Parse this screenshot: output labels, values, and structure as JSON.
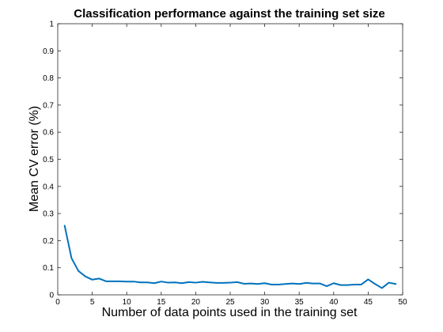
{
  "chart_data": {
    "type": "line",
    "title": "Classification performance against the training set size",
    "xlabel": "Number of data points used in the training set",
    "ylabel": "Mean CV error (%)",
    "xlim": [
      0,
      50
    ],
    "ylim": [
      0,
      1
    ],
    "xticks": [
      "0",
      "5",
      "10",
      "15",
      "20",
      "25",
      "30",
      "35",
      "40",
      "45",
      "50"
    ],
    "yticks": [
      "0",
      "0.1",
      "0.2",
      "0.3",
      "0.4",
      "0.5",
      "0.6",
      "0.7",
      "0.8",
      "0.9",
      "1"
    ],
    "grid": false,
    "legend": "none",
    "series": [
      {
        "color": "#0072BD",
        "x": [
          1,
          2,
          3,
          4,
          5,
          6,
          7,
          8,
          9,
          10,
          11,
          12,
          13,
          14,
          15,
          16,
          17,
          18,
          19,
          20,
          21,
          22,
          23,
          24,
          25,
          26,
          27,
          28,
          29,
          30,
          31,
          32,
          33,
          34,
          35,
          36,
          37,
          38,
          39,
          40,
          41,
          42,
          43,
          44,
          45,
          46,
          47,
          48,
          49
        ],
        "y": [
          0.255,
          0.135,
          0.088,
          0.068,
          0.056,
          0.06,
          0.05,
          0.05,
          0.05,
          0.049,
          0.049,
          0.046,
          0.046,
          0.043,
          0.049,
          0.045,
          0.046,
          0.043,
          0.047,
          0.045,
          0.048,
          0.046,
          0.044,
          0.044,
          0.045,
          0.047,
          0.041,
          0.042,
          0.04,
          0.043,
          0.038,
          0.038,
          0.04,
          0.042,
          0.04,
          0.044,
          0.042,
          0.042,
          0.032,
          0.043,
          0.036,
          0.036,
          0.038,
          0.038,
          0.057,
          0.04,
          0.025,
          0.045,
          0.04
        ]
      }
    ]
  }
}
